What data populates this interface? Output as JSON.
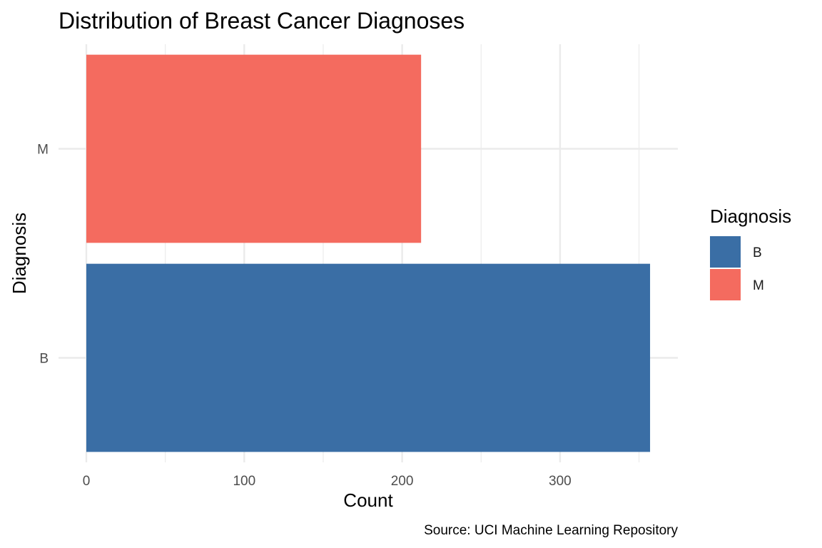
{
  "chart_data": {
    "type": "bar",
    "orientation": "horizontal",
    "title": "Distribution of Breast Cancer Diagnoses",
    "xlabel": "Count",
    "ylabel": "Diagnosis",
    "caption": "Source: UCI Machine Learning Repository",
    "categories": [
      "B",
      "M"
    ],
    "values": [
      357,
      212
    ],
    "colors": {
      "B": "#3A6EA5",
      "M": "#F46B5F"
    },
    "xlim": [
      0,
      375
    ],
    "x_ticks": [
      0,
      100,
      200,
      300
    ],
    "x_tick_labels": [
      "0",
      "100",
      "200",
      "300"
    ],
    "grid": true,
    "legend": {
      "title": "Diagnosis",
      "placement": "right",
      "entries": [
        "B",
        "M"
      ]
    }
  }
}
